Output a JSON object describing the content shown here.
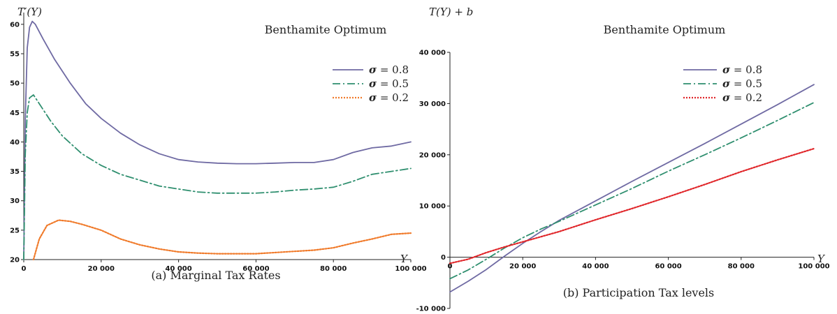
{
  "colors": {
    "sigma_08": "#6f6aa3",
    "sigma_05": "#2f8f6f",
    "sigma_02_left": "#f07a2a",
    "sigma_02_right": "#e0262a"
  },
  "legend": [
    {
      "symbol": "σ",
      "text": " = 0.8"
    },
    {
      "symbol": "σ",
      "text": " = 0.5"
    },
    {
      "symbol": "σ",
      "text": " = 0.2"
    }
  ],
  "chart_data": [
    {
      "type": "line",
      "ylabel": "T′(Y)",
      "xlabel": "Y",
      "title": "Benthamite Optimum",
      "caption": "(a) Marginal Tax Rates",
      "xlim": [
        0,
        100000
      ],
      "ylim": [
        20,
        62
      ],
      "xticks": [
        0,
        20000,
        40000,
        60000,
        80000,
        100000
      ],
      "xtick_labels": [
        "0",
        "20 000",
        "40 000",
        "60 000",
        "80 000",
        "100 000"
      ],
      "yticks": [
        20,
        25,
        30,
        35,
        40,
        45,
        50,
        55,
        60
      ],
      "ytick_labels": [
        "20",
        "25",
        "30",
        "35",
        "40",
        "45",
        "50",
        "55",
        "60"
      ],
      "legend_position": "upper-right",
      "series": [
        {
          "name": "σ = 0.8",
          "style": "solid",
          "x": [
            0,
            400,
            900,
            1500,
            2200,
            3000,
            5000,
            8000,
            12000,
            16000,
            20000,
            25000,
            30000,
            35000,
            40000,
            45000,
            50000,
            55000,
            60000,
            65000,
            70000,
            75000,
            80000,
            85000,
            90000,
            95000,
            100000
          ],
          "y": [
            20,
            44,
            56,
            59.5,
            60.5,
            60,
            57.5,
            54,
            50,
            46.5,
            44,
            41.5,
            39.5,
            38,
            37,
            36.6,
            36.4,
            36.3,
            36.3,
            36.4,
            36.5,
            36.5,
            37,
            38.2,
            39,
            39.3,
            40
          ]
        },
        {
          "name": "σ = 0.5",
          "style": "dashdot",
          "x": [
            0,
            400,
            900,
            1500,
            2500,
            4000,
            7000,
            10000,
            15000,
            20000,
            25000,
            30000,
            35000,
            40000,
            45000,
            50000,
            55000,
            60000,
            65000,
            70000,
            75000,
            80000,
            85000,
            90000,
            95000,
            100000
          ],
          "y": [
            20,
            38,
            45,
            47.5,
            48,
            46.5,
            43.5,
            41,
            38,
            36,
            34.5,
            33.5,
            32.5,
            32,
            31.5,
            31.3,
            31.3,
            31.3,
            31.5,
            31.8,
            32,
            32.3,
            33.3,
            34.5,
            35,
            35.5
          ]
        },
        {
          "name": "σ = 0.2",
          "style": "dotted",
          "x": [
            2500,
            4000,
            6000,
            9000,
            12000,
            15000,
            20000,
            25000,
            30000,
            35000,
            40000,
            45000,
            50000,
            55000,
            60000,
            65000,
            70000,
            75000,
            80000,
            85000,
            90000,
            95000,
            100000
          ],
          "y": [
            20,
            23.5,
            25.8,
            26.7,
            26.5,
            26,
            25,
            23.5,
            22.5,
            21.8,
            21.3,
            21.1,
            21,
            21,
            21,
            21.2,
            21.4,
            21.6,
            22,
            22.8,
            23.5,
            24.3,
            24.5
          ]
        }
      ]
    },
    {
      "type": "line",
      "ylabel": "T(Y) + b",
      "xlabel": "Y",
      "title": "Benthamite Optimum",
      "caption": "(b) Participation Tax levels",
      "xlim": [
        0,
        100000
      ],
      "ylim": [
        -10000,
        40000
      ],
      "xticks": [
        0,
        20000,
        40000,
        60000,
        80000,
        100000
      ],
      "xtick_labels": [
        "0",
        "20 000",
        "40 000",
        "60 000",
        "80 000",
        "100 000"
      ],
      "yticks": [
        -10000,
        0,
        10000,
        20000,
        30000,
        40000
      ],
      "ytick_labels": [
        "-10 000",
        "0",
        "10 000",
        "20 000",
        "30 000",
        "40 000"
      ],
      "legend_position": "upper-right",
      "series": [
        {
          "name": "σ = 0.8",
          "style": "solid",
          "x": [
            0,
            5000,
            10000,
            15000,
            20000,
            25000,
            30000,
            40000,
            50000,
            60000,
            70000,
            80000,
            90000,
            100000
          ],
          "y": [
            -6800,
            -4700,
            -2400,
            200,
            2700,
            5000,
            7200,
            11000,
            14800,
            18500,
            22200,
            26000,
            29800,
            33700
          ]
        },
        {
          "name": "σ = 0.5",
          "style": "dashdot",
          "x": [
            0,
            5000,
            10000,
            15000,
            20000,
            25000,
            30000,
            40000,
            50000,
            60000,
            70000,
            80000,
            90000,
            100000
          ],
          "y": [
            -4200,
            -2500,
            -400,
            1800,
            3800,
            5500,
            7000,
            10200,
            13400,
            16800,
            20000,
            23300,
            26700,
            30200
          ]
        },
        {
          "name": "σ = 0.2",
          "style": "dotted",
          "x": [
            0,
            5000,
            10000,
            15000,
            20000,
            30000,
            40000,
            50000,
            60000,
            70000,
            80000,
            90000,
            100000
          ],
          "y": [
            -1200,
            -400,
            900,
            2000,
            3000,
            5000,
            7300,
            9500,
            11800,
            14200,
            16700,
            19000,
            21200
          ]
        }
      ]
    }
  ]
}
